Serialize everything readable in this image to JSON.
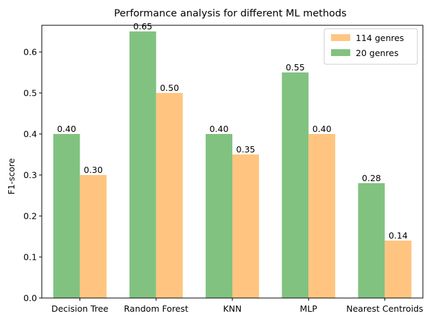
{
  "chart_data": {
    "type": "bar",
    "title": "Performance analysis for different ML methods",
    "xlabel": "",
    "ylabel": "F1-score",
    "ylim": [
      0,
      0.665
    ],
    "yticks": [
      0.0,
      0.1,
      0.2,
      0.3,
      0.4,
      0.5,
      0.6
    ],
    "ytick_labels": [
      "0.0",
      "0.1",
      "0.2",
      "0.3",
      "0.4",
      "0.5",
      "0.6"
    ],
    "categories": [
      "Decision Tree",
      "Random Forest",
      "KNN",
      "MLP",
      "Nearest Centroids"
    ],
    "series": [
      {
        "name": "20 genres",
        "color": "#81c281",
        "values": [
          0.4,
          0.65,
          0.4,
          0.55,
          0.28
        ],
        "labels": [
          "0.40",
          "0.65",
          "0.40",
          "0.55",
          "0.28"
        ]
      },
      {
        "name": "114 genres",
        "color": "#ffc580",
        "values": [
          0.3,
          0.5,
          0.35,
          0.4,
          0.14
        ],
        "labels": [
          "0.30",
          "0.50",
          "0.35",
          "0.40",
          "0.14"
        ]
      }
    ],
    "legend": {
      "placement": "top-right",
      "order": [
        1,
        0
      ]
    },
    "grid": false
  }
}
